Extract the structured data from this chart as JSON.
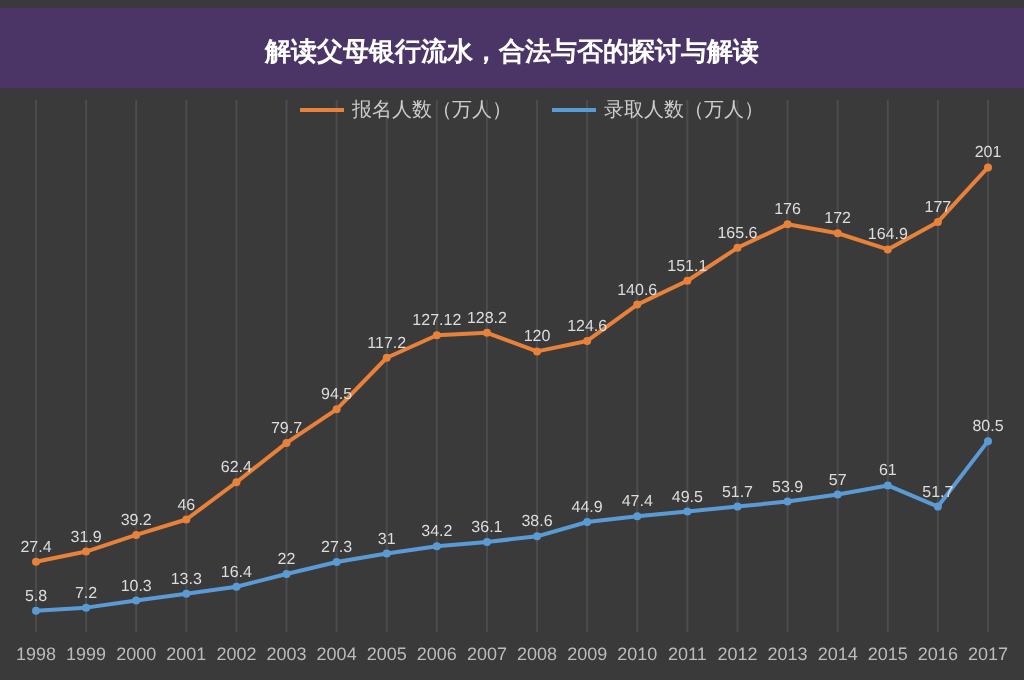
{
  "chart_data": {
    "type": "line",
    "title": "解读父母银行流水，合法与否的探讨与解读",
    "categories": [
      "1998",
      "1999",
      "2000",
      "2001",
      "2002",
      "2003",
      "2004",
      "2005",
      "2006",
      "2007",
      "2008",
      "2009",
      "2010",
      "2011",
      "2012",
      "2013",
      "2014",
      "2015",
      "2016",
      "2017"
    ],
    "series": [
      {
        "name": "报名人数（万人）",
        "color": "#e8813a",
        "values": [
          27.4,
          31.9,
          39.2,
          46,
          62.4,
          79.7,
          94.5,
          117.2,
          127.12,
          128.2,
          120,
          124.6,
          140.6,
          151.1,
          165.6,
          176,
          172,
          164.9,
          177,
          201
        ]
      },
      {
        "name": "录取人数（万人）",
        "color": "#5b9bd5",
        "values": [
          5.8,
          7.2,
          10.3,
          13.3,
          16.4,
          22,
          27.3,
          31,
          34.2,
          36.1,
          38.6,
          44.9,
          47.4,
          49.5,
          51.7,
          53.9,
          57,
          61,
          51.7,
          80.5
        ]
      }
    ],
    "data_labels": true,
    "legend": "top",
    "grid": "x",
    "marker": "circle"
  }
}
